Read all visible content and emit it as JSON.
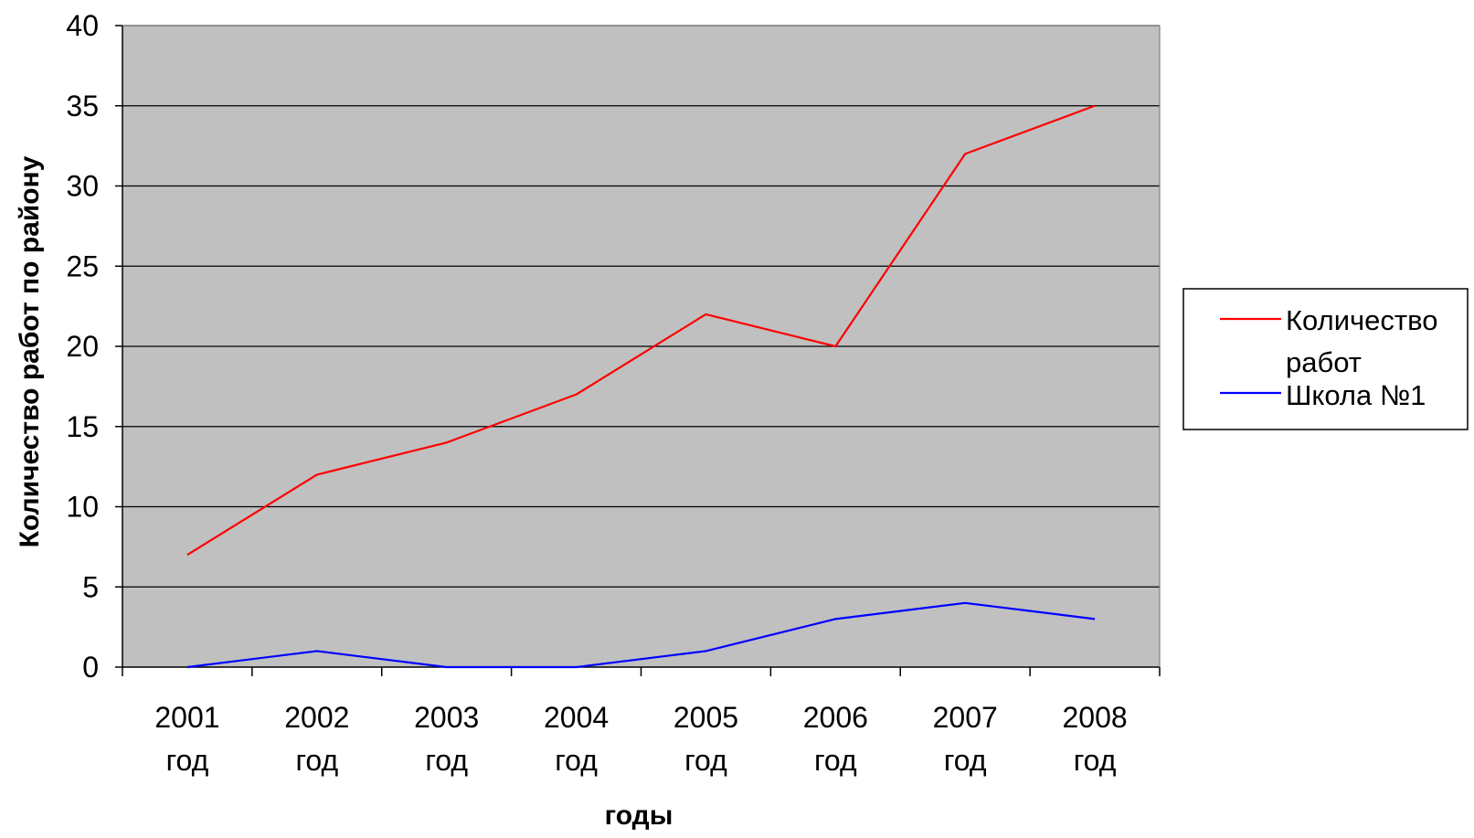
{
  "chart_data": {
    "type": "line",
    "title": "",
    "xlabel": "годы",
    "ylabel": "Количество работ по району",
    "ylim": [
      0,
      40
    ],
    "yticks": [
      0,
      5,
      10,
      15,
      20,
      25,
      30,
      35,
      40
    ],
    "categories": [
      [
        "2001",
        "год"
      ],
      [
        "2002",
        "год"
      ],
      [
        "2003",
        "год"
      ],
      [
        "2004",
        "год"
      ],
      [
        "2005",
        "год"
      ],
      [
        "2006",
        "год"
      ],
      [
        "2007",
        "год"
      ],
      [
        "2008",
        "год"
      ]
    ],
    "series": [
      {
        "name_lines": [
          "Количество",
          "работ"
        ],
        "color": "#ff0000",
        "values": [
          7,
          12,
          14,
          17,
          22,
          20,
          32,
          35
        ]
      },
      {
        "name_lines": [
          "Школа №1"
        ],
        "color": "#0000ff",
        "values": [
          0,
          1,
          0,
          0,
          1,
          3,
          4,
          3
        ]
      }
    ],
    "grid": true,
    "plot_background": "#c0c0c0",
    "legend_position": "right"
  }
}
